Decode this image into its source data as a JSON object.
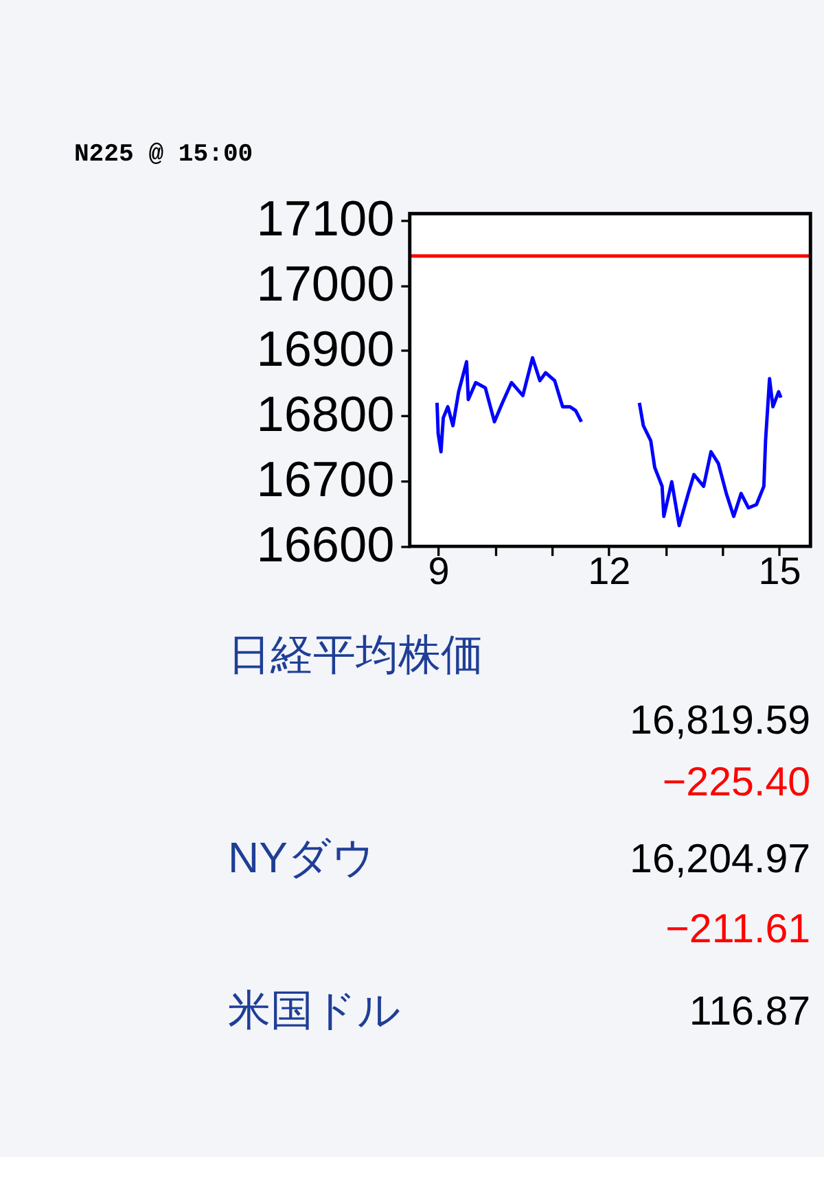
{
  "chart_data": [
    {
      "type": "line",
      "title": "N225 @ 15:00",
      "x": [
        8.98,
        9.0,
        9.05,
        9.09,
        9.17,
        9.26,
        9.36,
        9.5,
        9.53,
        9.66,
        9.83,
        9.99,
        10.13,
        10.29,
        10.49,
        10.66,
        10.79,
        10.89,
        11.05,
        11.19,
        11.32,
        11.42,
        11.52,
        12.0,
        12.54,
        12.61,
        12.74,
        12.81,
        12.94,
        12.97,
        13.11,
        13.24,
        13.4,
        13.5,
        13.67,
        13.8,
        13.93,
        14.07,
        14.2,
        14.33,
        14.46,
        14.6,
        14.73,
        14.76,
        14.83,
        14.89,
        14.99,
        15.03
      ],
      "series": [
        {
          "color": "#0000ff",
          "values": [
            16820,
            16773,
            16745,
            16797,
            16814,
            16785,
            16837,
            16883,
            16825,
            16851,
            16843,
            16791,
            16820,
            16851,
            16831,
            16889,
            16854,
            16866,
            16854,
            16814,
            16814,
            16808,
            16791,
            null,
            16820,
            16785,
            16762,
            16721,
            16692,
            16646,
            16699,
            16632,
            16681,
            16710,
            16692,
            16745,
            16727,
            16681,
            16646,
            16681,
            16659,
            16664,
            16692,
            16762,
            16857,
            16814,
            16837,
            16828
          ]
        }
      ],
      "xlim": [
        8.5,
        15.55
      ],
      "xticks": [
        9,
        {
          "value": 10,
          "label": null
        },
        {
          "value": 11,
          "label": null
        },
        12,
        {
          "value": 13,
          "label": null
        },
        {
          "value": 14,
          "label": null
        },
        15
      ],
      "ylim": [
        16600,
        17110
      ],
      "yticks": [
        {
          "value": 16600,
          "label": "16600"
        },
        {
          "value": 16700,
          "label": "16700"
        },
        {
          "value": 16800,
          "label": "16800"
        },
        {
          "value": 16900,
          "label": "16900"
        },
        {
          "value": 17000,
          "label": "17000"
        },
        {
          "value": 17100,
          "label": "17100"
        }
      ],
      "ref_lines": [
        {
          "axis": "y",
          "value": 17045,
          "color": "#ff0000"
        }
      ],
      "grid": false,
      "legend": false,
      "marker": "none",
      "line_style": "solid"
    },
    {
      "type": "other",
      "annotations": [
        "日経平均株価",
        "16,819.59",
        "−225.40",
        "NYダウ",
        "16,204.97",
        "−211.61",
        "米国ドル",
        "116.87"
      ]
    }
  ]
}
